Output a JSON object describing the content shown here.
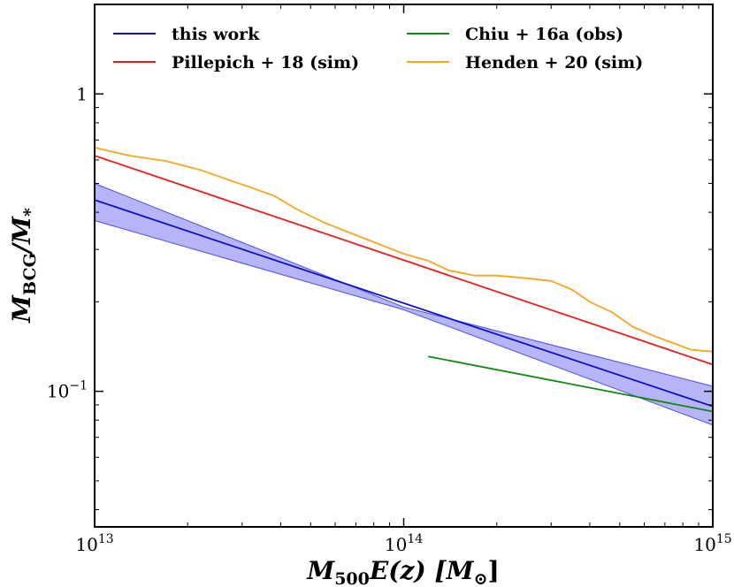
{
  "chart_data": {
    "type": "line",
    "xscale": "log",
    "yscale": "log",
    "xlim": [
      10000000000000.0,
      1000000000000000.0
    ],
    "ylim": [
      0.035,
      2.0
    ],
    "xlabel": {
      "main": "M",
      "sub": "500",
      "tail": "E(z) [M",
      "sun": "⊙",
      "close": "]"
    },
    "ylabel": {
      "main": "M",
      "sub": "BCG",
      "mid": "/M",
      "sub2": "*"
    },
    "x_ticks": [
      {
        "value": 10000000000000.0,
        "base": "10",
        "exp": "13"
      },
      {
        "value": 100000000000000.0,
        "base": "10",
        "exp": "14"
      },
      {
        "value": 1000000000000000.0,
        "base": "10",
        "exp": "15"
      }
    ],
    "y_ticks": [
      {
        "value": 1,
        "base": "1",
        "exp": ""
      },
      {
        "value": 0.1,
        "base": "10",
        "exp": "−1"
      }
    ],
    "series": [
      {
        "name": "this work",
        "color": "#1010c8",
        "x": [
          10000000000000.0,
          1000000000000000.0
        ],
        "y": [
          0.44,
          0.089
        ],
        "band": {
          "color": "#6c6cf0",
          "x": [
            10000000000000.0,
            100000000000000.0,
            1000000000000000.0
          ],
          "lower": [
            0.375,
            0.188,
            0.077
          ],
          "upper": [
            0.5,
            0.192,
            0.104
          ]
        }
      },
      {
        "name": "Pillepich + 18 (sim)",
        "color": "#e81e1e",
        "x": [
          10000000000000.0,
          1000000000000000.0
        ],
        "y": [
          0.62,
          0.123
        ]
      },
      {
        "name": "Chiu + 16a (obs)",
        "color": "#128812",
        "x": [
          120000000000000.0,
          1000000000000000.0
        ],
        "y": [
          0.131,
          0.0855
        ]
      },
      {
        "name": "Henden + 20 (sim)",
        "color": "#f5a623",
        "x": [
          10000000000000.0,
          13000000000000.0,
          17000000000000.0,
          22000000000000.0,
          27000000000000.0,
          32000000000000.0,
          38000000000000.0,
          45000000000000.0,
          55000000000000.0,
          70000000000000.0,
          85000000000000.0,
          100000000000000.0,
          120000000000000.0,
          140000000000000.0,
          170000000000000.0,
          200000000000000.0,
          250000000000000.0,
          300000000000000.0,
          350000000000000.0,
          400000000000000.0,
          470000000000000.0,
          550000000000000.0,
          650000000000000.0,
          750000000000000.0,
          850000000000000.0,
          1000000000000000.0
        ],
        "y": [
          0.66,
          0.62,
          0.595,
          0.555,
          0.515,
          0.485,
          0.455,
          0.41,
          0.37,
          0.335,
          0.31,
          0.29,
          0.275,
          0.255,
          0.245,
          0.245,
          0.24,
          0.235,
          0.22,
          0.2,
          0.185,
          0.165,
          0.153,
          0.145,
          0.138,
          0.136
        ]
      }
    ],
    "legend": {
      "placement": "top",
      "columns": 2
    }
  }
}
